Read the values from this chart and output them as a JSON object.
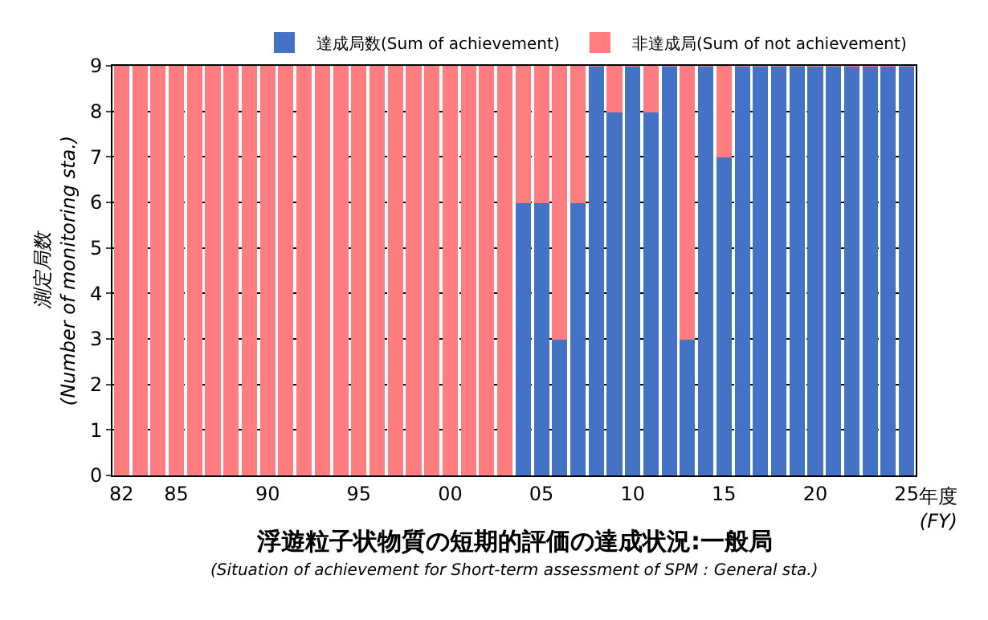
{
  "chart_data": {
    "type": "bar",
    "stacked": true,
    "title": "浮遊粒子状物質の短期的評価の達成状況:一般局",
    "subtitle": "(Situation of achievement for Short-term assessment of SPM : General sta.)",
    "xlabel": "年度\n(FY)",
    "ylabel": "測定局数\n(Number of monitoring sta.)",
    "categories": [
      "82",
      null,
      null,
      "85",
      null,
      null,
      null,
      null,
      "90",
      null,
      null,
      null,
      null,
      "95",
      null,
      null,
      null,
      null,
      "00",
      null,
      null,
      null,
      null,
      "05",
      null,
      null,
      null,
      null,
      "10",
      null,
      null,
      null,
      null,
      "15",
      null,
      null,
      null,
      null,
      "20",
      null,
      null,
      null,
      null,
      "25"
    ],
    "series": [
      {
        "name": "達成局数(Sum of achievement)",
        "color": "#4472c4",
        "values": [
          0,
          0,
          0,
          0,
          0,
          0,
          0,
          0,
          0,
          0,
          0,
          0,
          0,
          0,
          0,
          0,
          0,
          0,
          0,
          0,
          0,
          0,
          6,
          6,
          3,
          6,
          9,
          8,
          9,
          8,
          9,
          3,
          9,
          7,
          9,
          9,
          9,
          9,
          9,
          9,
          9,
          9,
          9,
          9
        ]
      },
      {
        "name": "非達成局(Sum of not achievement)",
        "color": "#ff7c80",
        "values": [
          9,
          9,
          9,
          9,
          9,
          9,
          9,
          9,
          9,
          9,
          9,
          9,
          9,
          9,
          9,
          9,
          9,
          9,
          9,
          9,
          9,
          9,
          3,
          3,
          6,
          3,
          0,
          1,
          0,
          1,
          0,
          6,
          0,
          2,
          0,
          0,
          0,
          0,
          0,
          0,
          0,
          0,
          0,
          0
        ]
      }
    ],
    "ylim": [
      0,
      9
    ],
    "yticks": [
      0,
      1,
      2,
      3,
      4,
      5,
      6,
      7,
      8,
      9
    ],
    "grid": "y",
    "legend": "top right"
  }
}
